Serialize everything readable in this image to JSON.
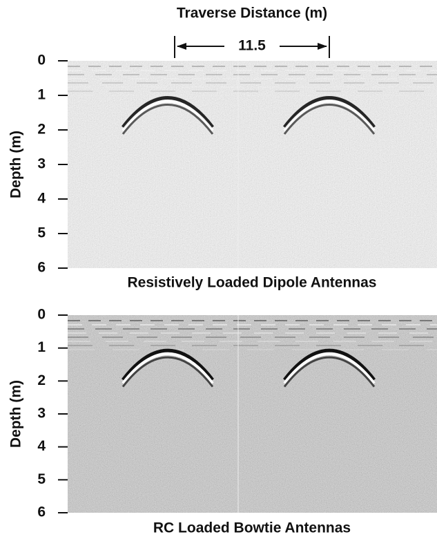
{
  "header": {
    "title": "Traverse Distance (m)",
    "span_label": "11.5"
  },
  "panels": [
    {
      "ylabel": "Depth (m)",
      "yticks": [
        0,
        1,
        2,
        3,
        4,
        5,
        6
      ],
      "caption": "Resistively Loaded Dipole Antennas"
    },
    {
      "ylabel": "Depth (m)",
      "yticks": [
        0,
        1,
        2,
        3,
        4,
        5,
        6
      ],
      "caption": "RC Loaded Bowtie Antennas"
    }
  ]
}
